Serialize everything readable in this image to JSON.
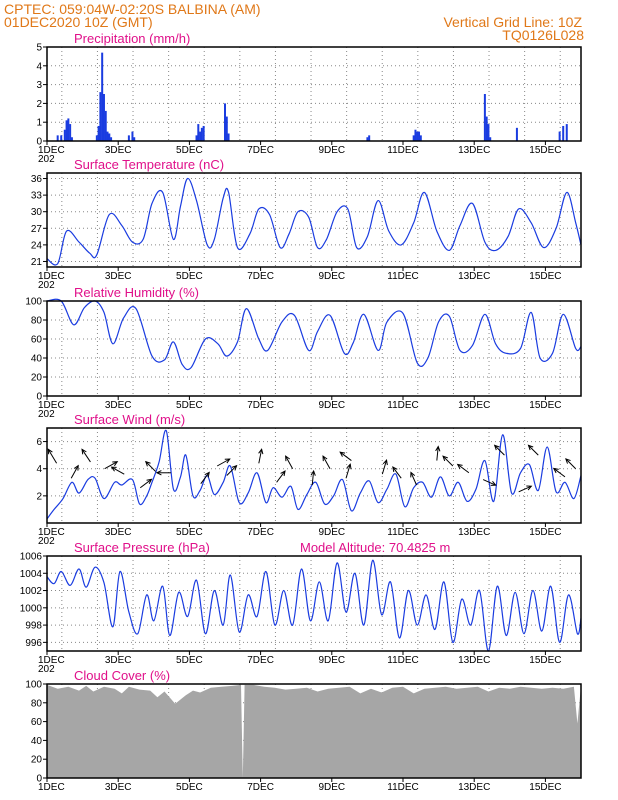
{
  "header": {
    "station_line": "CPTEC:   059:04W-02:20S   BALBINA (AM)",
    "date_line": "01DEC2020  10Z (GMT)",
    "grid_note": "Vertical Grid Line: 10Z",
    "code": "TQ0126L028"
  },
  "colors": {
    "header": "#e07818",
    "title": "#e0108a",
    "line": "#1a3ce0",
    "cloud": "#a6a6a6",
    "grid": "#888888"
  },
  "x_axis": {
    "ticks": [
      "1DEC",
      "3DEC",
      "5DEC",
      "7DEC",
      "9DEC",
      "11DEC",
      "13DEC",
      "15DEC"
    ],
    "tick_days": [
      1,
      3,
      5,
      7,
      9,
      11,
      13,
      15
    ],
    "start_day": 1,
    "end_day": 16,
    "year_fragment": "202"
  },
  "chart_data": [
    {
      "id": "precip",
      "type": "bar",
      "title": "Precipitation (mm/h)",
      "ylim": [
        0,
        5
      ],
      "yticks": [
        0,
        1,
        2,
        3,
        4,
        5
      ],
      "x": [
        1.3,
        1.4,
        1.5,
        1.55,
        1.6,
        1.65,
        1.7,
        2.4,
        2.45,
        2.5,
        2.55,
        2.6,
        2.65,
        2.7,
        2.75,
        2.8,
        3.3,
        3.4,
        3.45,
        5.2,
        5.25,
        5.3,
        5.35,
        5.4,
        6.0,
        6.05,
        6.1,
        10.0,
        10.05,
        11.3,
        11.35,
        11.4,
        11.45,
        11.5,
        13.3,
        13.35,
        13.4,
        13.45,
        14.2,
        15.4,
        15.5,
        15.6
      ],
      "values": [
        0.3,
        0.3,
        0.6,
        1.1,
        1.2,
        0.9,
        0.2,
        0.3,
        0.8,
        2.6,
        4.7,
        2.5,
        1.6,
        0.5,
        0.4,
        0.2,
        0.3,
        0.5,
        0.2,
        0.3,
        0.9,
        0.5,
        0.7,
        0.8,
        2.0,
        1.3,
        0.4,
        0.2,
        0.3,
        0.3,
        0.6,
        0.5,
        0.5,
        0.3,
        2.5,
        1.3,
        0.9,
        0.2,
        0.7,
        0.5,
        0.8,
        0.9
      ]
    },
    {
      "id": "temp",
      "type": "line",
      "title": "Surface Temperature (nC)",
      "ylim": [
        20,
        37
      ],
      "yticks": [
        21,
        24,
        27,
        30,
        33,
        36
      ],
      "x": [
        1.0,
        1.3,
        1.55,
        1.9,
        2.2,
        2.4,
        2.75,
        3.1,
        3.4,
        3.7,
        3.95,
        4.25,
        4.55,
        4.75,
        4.95,
        5.2,
        5.5,
        5.7,
        5.95,
        6.1,
        6.35,
        6.7,
        6.95,
        7.25,
        7.55,
        7.8,
        8.05,
        8.35,
        8.6,
        8.85,
        9.15,
        9.45,
        9.7,
        10.0,
        10.3,
        10.6,
        10.95,
        11.3,
        11.6,
        11.95,
        12.3,
        12.6,
        12.95,
        13.3,
        13.6,
        13.95,
        14.25,
        14.6,
        14.95,
        15.3,
        15.6,
        15.85,
        16.0
      ],
      "values": [
        21.5,
        20.6,
        26.5,
        24.5,
        22.5,
        22.2,
        29.5,
        27.5,
        24.5,
        25,
        31.5,
        33.5,
        25,
        31,
        36,
        32,
        24,
        25,
        32.5,
        33.5,
        23.5,
        26,
        30.5,
        29.5,
        23.5,
        26,
        30,
        29,
        23.5,
        25,
        30,
        30.5,
        23.5,
        25.5,
        32,
        26.5,
        24,
        28,
        33.5,
        26.5,
        23,
        27.5,
        31.5,
        24.5,
        23,
        25.5,
        30.5,
        28,
        23.5,
        27,
        33.5,
        28,
        24
      ]
    },
    {
      "id": "rh",
      "type": "line",
      "title": "Relative Humidity (%)",
      "ylim": [
        0,
        100
      ],
      "yticks": [
        0,
        20,
        40,
        60,
        80,
        100
      ],
      "x": [
        1.0,
        1.4,
        1.75,
        2.05,
        2.35,
        2.6,
        2.85,
        3.15,
        3.5,
        3.95,
        4.3,
        4.55,
        4.8,
        5.05,
        5.45,
        5.8,
        6.05,
        6.35,
        6.6,
        6.95,
        7.2,
        7.6,
        7.95,
        8.35,
        8.6,
        8.95,
        9.35,
        9.6,
        9.9,
        10.3,
        10.55,
        11.0,
        11.4,
        11.7,
        12.0,
        12.3,
        12.6,
        12.95,
        13.3,
        13.6,
        13.9,
        14.3,
        14.6,
        14.85,
        15.2,
        15.5,
        15.85,
        16.0
      ],
      "values": [
        100,
        100,
        75,
        93,
        100,
        88,
        55,
        82,
        92,
        42,
        38,
        57,
        33,
        30,
        60,
        55,
        42,
        57,
        92,
        60,
        48,
        78,
        85,
        48,
        68,
        85,
        45,
        56,
        86,
        48,
        78,
        87,
        35,
        40,
        78,
        84,
        48,
        53,
        86,
        55,
        45,
        50,
        88,
        40,
        45,
        86,
        50,
        52
      ]
    },
    {
      "id": "wind",
      "type": "line",
      "title": "Surface Wind (m/s)",
      "ylim": [
        0,
        7
      ],
      "yticks": [
        2,
        4,
        6
      ],
      "x": [
        1.0,
        1.2,
        1.45,
        1.7,
        1.9,
        2.15,
        2.35,
        2.6,
        2.9,
        3.1,
        3.4,
        3.6,
        3.8,
        3.95,
        4.15,
        4.35,
        4.55,
        4.75,
        4.9,
        5.1,
        5.3,
        5.5,
        5.7,
        5.95,
        6.15,
        6.4,
        6.65,
        6.9,
        7.15,
        7.35,
        7.6,
        7.85,
        8.05,
        8.3,
        8.55,
        8.8,
        9.05,
        9.3,
        9.55,
        9.8,
        10.05,
        10.3,
        10.55,
        10.8,
        11.05,
        11.3,
        11.55,
        11.8,
        12.05,
        12.3,
        12.55,
        12.8,
        13.05,
        13.3,
        13.55,
        13.8,
        14.05,
        14.3,
        14.55,
        14.8,
        15.05,
        15.3,
        15.55,
        15.8,
        16.0
      ],
      "values": [
        0.3,
        1.0,
        1.8,
        3.0,
        2.2,
        3.2,
        3.3,
        1.8,
        3.0,
        2.8,
        3.2,
        1.4,
        2.0,
        3.0,
        4.5,
        6.8,
        2.5,
        3.4,
        5.0,
        2.0,
        2.4,
        3.5,
        2.1,
        3.0,
        4.2,
        1.5,
        2.2,
        3.7,
        1.5,
        2.6,
        1.9,
        2.7,
        1.0,
        2.1,
        3.0,
        1.4,
        2.0,
        3.2,
        0.9,
        2.2,
        3.1,
        1.5,
        2.5,
        3.6,
        1.2,
        2.6,
        3.0,
        1.9,
        3.4,
        2.0,
        3.0,
        1.6,
        2.5,
        4.6,
        1.6,
        6.5,
        2.2,
        3.7,
        4.3,
        2.4,
        5.6,
        2.3,
        3.0,
        1.8,
        3.5
      ],
      "vectors": [
        {
          "day": 1.27,
          "speed": 4.4,
          "u": -0.6,
          "v": 1.0
        },
        {
          "day": 1.68,
          "speed": 3.3,
          "u": 0.5,
          "v": 0.9
        },
        {
          "day": 2.22,
          "speed": 4.5,
          "u": -0.6,
          "v": 0.9
        },
        {
          "day": 2.62,
          "speed": 4.0,
          "u": 0.9,
          "v": 0.5
        },
        {
          "day": 3.17,
          "speed": 3.6,
          "u": -0.9,
          "v": 0.5
        },
        {
          "day": 3.62,
          "speed": 2.6,
          "u": 0.8,
          "v": 0.6
        },
        {
          "day": 4.05,
          "speed": 3.8,
          "u": -0.7,
          "v": 0.7
        },
        {
          "day": 4.48,
          "speed": 3.7,
          "u": -1.0,
          "v": 0.0
        },
        {
          "day": 5.32,
          "speed": 2.9,
          "u": 0.6,
          "v": 0.8
        },
        {
          "day": 5.78,
          "speed": 4.2,
          "u": 0.9,
          "v": 0.5
        },
        {
          "day": 6.05,
          "speed": 3.5,
          "u": 0.7,
          "v": 0.7
        },
        {
          "day": 6.95,
          "speed": 4.4,
          "u": 0.2,
          "v": 1.0
        },
        {
          "day": 7.45,
          "speed": 3.0,
          "u": 0.6,
          "v": 0.8
        },
        {
          "day": 7.9,
          "speed": 4.0,
          "u": -0.5,
          "v": 0.9
        },
        {
          "day": 8.45,
          "speed": 2.8,
          "u": 0.1,
          "v": 1.0
        },
        {
          "day": 8.95,
          "speed": 4.0,
          "u": -0.5,
          "v": 0.9
        },
        {
          "day": 9.4,
          "speed": 3.3,
          "u": 0.3,
          "v": 1.0
        },
        {
          "day": 9.55,
          "speed": 4.6,
          "u": -0.8,
          "v": 0.6
        },
        {
          "day": 10.42,
          "speed": 3.6,
          "u": 0.3,
          "v": 1.0
        },
        {
          "day": 10.95,
          "speed": 3.3,
          "u": -0.6,
          "v": 0.8
        },
        {
          "day": 11.38,
          "speed": 2.8,
          "u": -0.4,
          "v": 0.9
        },
        {
          "day": 11.95,
          "speed": 4.6,
          "u": 0.1,
          "v": 1.0
        },
        {
          "day": 12.4,
          "speed": 4.2,
          "u": -0.7,
          "v": 0.7
        },
        {
          "day": 12.85,
          "speed": 3.7,
          "u": -0.8,
          "v": 0.6
        },
        {
          "day": 13.25,
          "speed": 3.2,
          "u": 0.9,
          "v": -0.4
        },
        {
          "day": 13.85,
          "speed": 5.0,
          "u": -0.7,
          "v": 0.7
        },
        {
          "day": 14.25,
          "speed": 2.3,
          "u": 0.9,
          "v": 0.4
        },
        {
          "day": 14.8,
          "speed": 5.0,
          "u": -0.7,
          "v": 0.7
        },
        {
          "day": 15.55,
          "speed": 3.4,
          "u": -0.8,
          "v": 0.6
        },
        {
          "day": 15.85,
          "speed": 4.0,
          "u": -0.7,
          "v": 0.7
        }
      ]
    },
    {
      "id": "pres",
      "type": "line",
      "title": "Surface Pressure (hPa)",
      "annotation": "Model Altitude: 70.4825 m",
      "ylim": [
        995,
        1006
      ],
      "yticks": [
        996,
        998,
        1000,
        1002,
        1004,
        1006
      ],
      "x": [
        1.0,
        1.2,
        1.4,
        1.65,
        1.9,
        2.1,
        2.35,
        2.6,
        2.85,
        3.05,
        3.3,
        3.55,
        3.8,
        4.0,
        4.25,
        4.45,
        4.7,
        4.95,
        5.2,
        5.45,
        5.7,
        5.95,
        6.15,
        6.4,
        6.65,
        6.9,
        7.15,
        7.4,
        7.65,
        7.9,
        8.15,
        8.4,
        8.65,
        8.9,
        9.15,
        9.4,
        9.65,
        9.9,
        10.15,
        10.4,
        10.65,
        10.9,
        11.15,
        11.4,
        11.65,
        11.9,
        12.15,
        12.4,
        12.65,
        12.9,
        13.15,
        13.4,
        13.65,
        13.9,
        14.15,
        14.4,
        14.65,
        14.9,
        15.15,
        15.4,
        15.65,
        15.9,
        16.0
      ],
      "values": [
        1003.6,
        1002.8,
        1004.2,
        1002.6,
        1004.5,
        1002.4,
        1004.7,
        1002.9,
        997.8,
        1004.2,
        999.5,
        997.0,
        1001.5,
        998.5,
        1002.5,
        996.8,
        1001.8,
        999.0,
        1003.2,
        997.0,
        1002.0,
        998.0,
        1003.8,
        997.2,
        1001.5,
        999.0,
        1004.2,
        998.0,
        1002.0,
        998.0,
        1004.5,
        998.5,
        1003.0,
        998.5,
        1005.2,
        999.5,
        1004.0,
        998.0,
        1005.5,
        999.2,
        1003.0,
        996.5,
        1002.0,
        998.0,
        1001.5,
        997.5,
        1003.0,
        996.0,
        1001.0,
        998.0,
        1002.0,
        995.0,
        1002.5,
        996.8,
        1001.8,
        997.0,
        1002.0,
        997.3,
        1002.5,
        996.0,
        1001.5,
        997.0,
        998.8
      ]
    },
    {
      "id": "cloud",
      "type": "area",
      "title": "Cloud Cover (%)",
      "ylim": [
        0,
        100
      ],
      "yticks": [
        0,
        20,
        40,
        60,
        80,
        100
      ],
      "x": [
        1.0,
        1.3,
        1.6,
        1.9,
        2.1,
        2.3,
        2.6,
        2.9,
        3.1,
        3.3,
        3.6,
        3.9,
        4.1,
        4.3,
        4.6,
        4.9,
        5.1,
        5.3,
        5.6,
        5.9,
        6.2,
        6.45,
        6.5,
        6.55,
        6.8,
        7.1,
        7.4,
        7.7,
        8.0,
        8.3,
        8.6,
        8.9,
        9.2,
        9.5,
        9.8,
        10.1,
        10.4,
        10.7,
        11.0,
        11.3,
        11.6,
        11.9,
        12.2,
        12.5,
        12.8,
        13.1,
        13.4,
        13.7,
        14.0,
        14.3,
        14.6,
        14.9,
        15.2,
        15.5,
        15.8,
        15.9,
        16.0
      ],
      "values": [
        99,
        95,
        97,
        93,
        98,
        92,
        97,
        95,
        90,
        97,
        94,
        93,
        86,
        92,
        79,
        88,
        93,
        91,
        96,
        97,
        98,
        99,
        0,
        99,
        99,
        97,
        96,
        94,
        95,
        96,
        92,
        95,
        96,
        97,
        90,
        95,
        91,
        96,
        97,
        90,
        95,
        96,
        97,
        95,
        96,
        97,
        92,
        96,
        95,
        97,
        96,
        95,
        96,
        95,
        97,
        58,
        98
      ]
    }
  ]
}
